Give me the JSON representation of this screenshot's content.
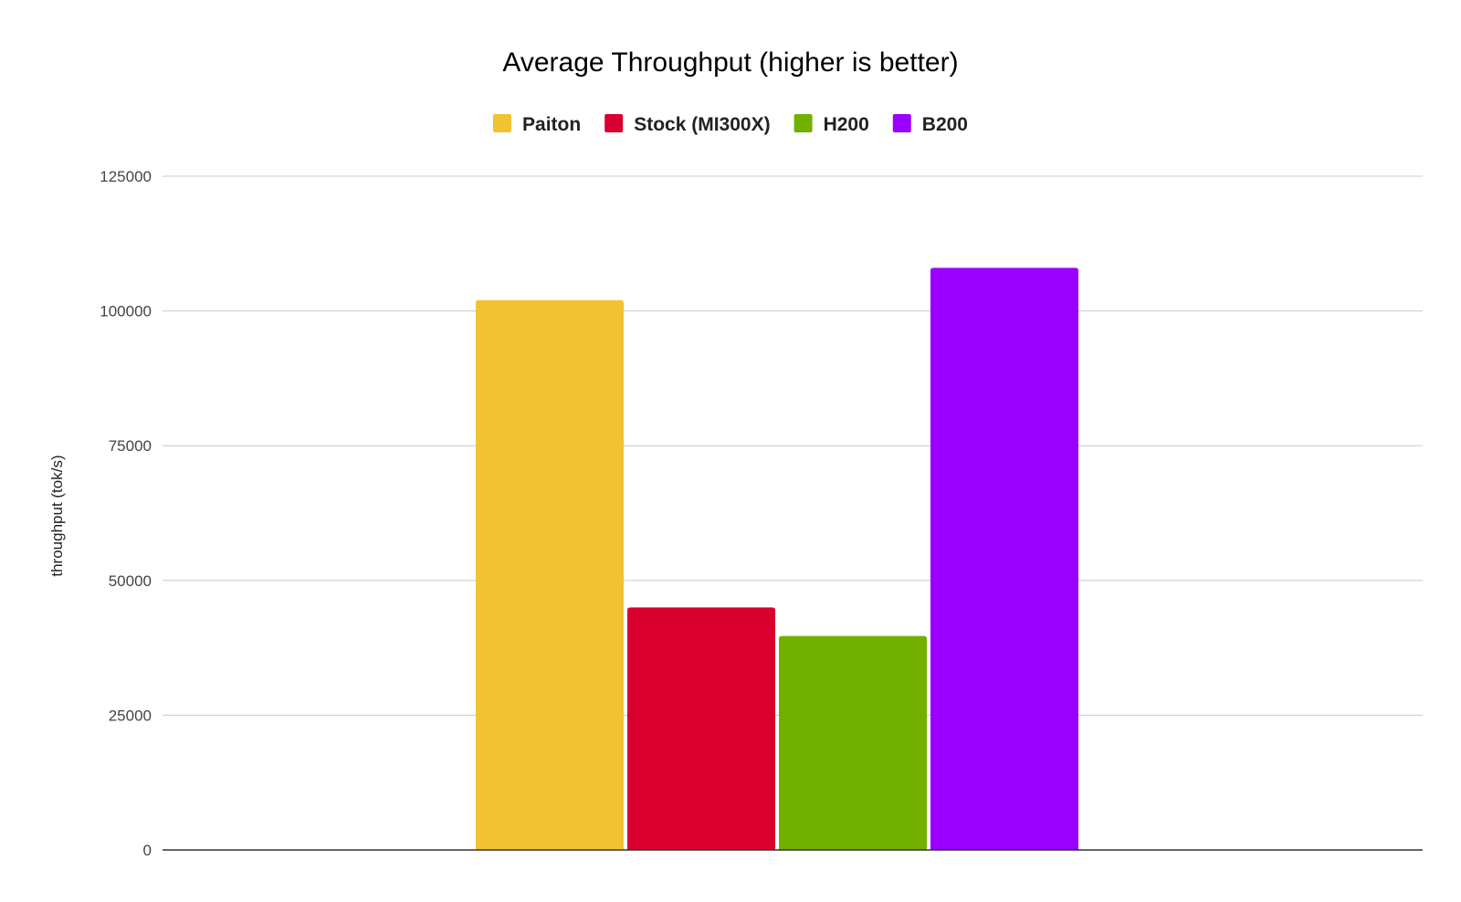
{
  "chart_data": {
    "type": "bar",
    "title": "Average Throughput (higher is better)",
    "xlabel": "",
    "ylabel": "throughput (tok/s)",
    "ylim": [
      0,
      125000
    ],
    "yticks": [
      0,
      25000,
      50000,
      75000,
      100000,
      125000
    ],
    "grid": true,
    "legend_position": "top",
    "categories": [
      ""
    ],
    "series": [
      {
        "name": "Paiton",
        "color": "#F1C232",
        "values": [
          102000
        ]
      },
      {
        "name": "Stock (MI300X)",
        "color": "#D9002F",
        "values": [
          45000
        ]
      },
      {
        "name": "H200",
        "color": "#72B000",
        "values": [
          39700
        ]
      },
      {
        "name": "B200",
        "color": "#9900FF",
        "values": [
          108000
        ]
      }
    ]
  }
}
